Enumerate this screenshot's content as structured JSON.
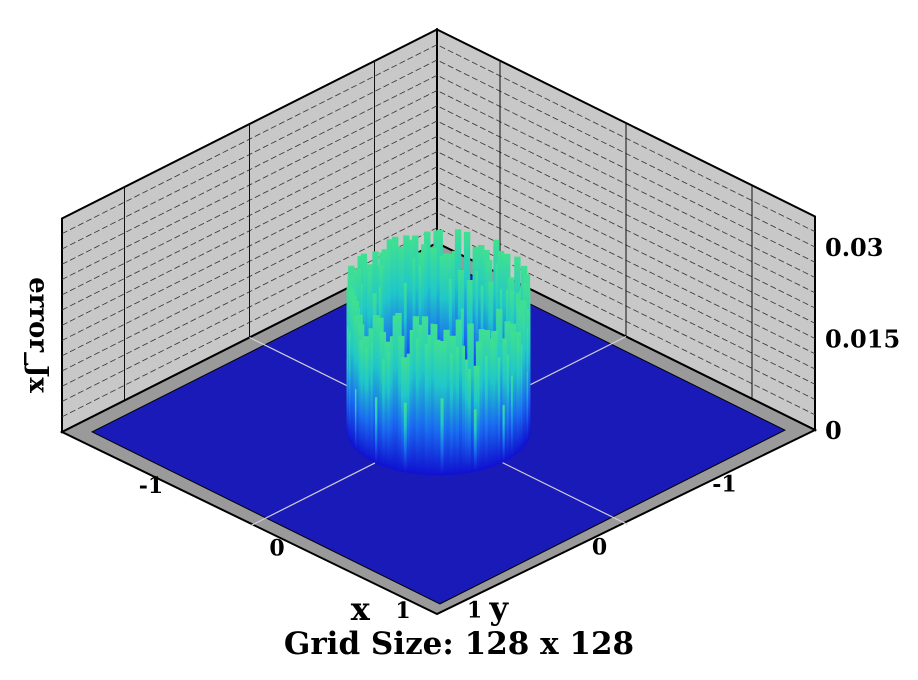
{
  "caption": "Grid Size: 128 x 128",
  "chart_data": {
    "type": "surface3d",
    "title": "",
    "xlabel": "x",
    "ylabel": "y",
    "zlabel": "error_Jx",
    "xlim": [
      -1.5,
      1.5
    ],
    "ylim": [
      -1.5,
      1.5
    ],
    "zlim": [
      0,
      0.035
    ],
    "x_ticks": [
      "-1",
      "0",
      "1"
    ],
    "y_ticks": [
      "-1",
      "0",
      "1"
    ],
    "z_ticks": [
      "0",
      "0.015",
      "0.03"
    ],
    "floor_color": "#1a1ab8",
    "wall_color": "#c8c8c8",
    "colormap": [
      "#1010d0",
      "#1a6cf0",
      "#20c8c8",
      "#40e090"
    ],
    "feature": "ring of error spikes at radius 0.5, peak about 0.025, zero elsewhere"
  }
}
